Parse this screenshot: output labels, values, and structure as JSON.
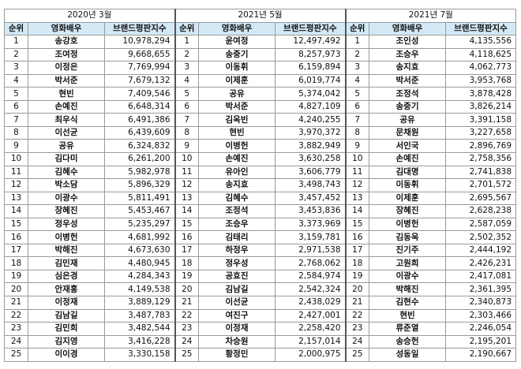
{
  "headers": {
    "rank": "순위",
    "actor": "영화배우",
    "index": "브랜드평판지수"
  },
  "periods": [
    {
      "title": "2020년 3월",
      "rows": [
        [
          "1",
          "송강호",
          "10,978,294"
        ],
        [
          "2",
          "조여정",
          "9,668,655"
        ],
        [
          "3",
          "이정은",
          "7,769,994"
        ],
        [
          "4",
          "박서준",
          "7,679,132"
        ],
        [
          "5",
          "현빈",
          "7,409,546"
        ],
        [
          "6",
          "손예진",
          "6,648,314"
        ],
        [
          "7",
          "최우식",
          "6,491,386"
        ],
        [
          "8",
          "이선균",
          "6,439,609"
        ],
        [
          "9",
          "공유",
          "6,324,832"
        ],
        [
          "10",
          "김다미",
          "6,261,200"
        ],
        [
          "11",
          "김혜수",
          "5,982,978"
        ],
        [
          "12",
          "박소담",
          "5,896,329"
        ],
        [
          "13",
          "이광수",
          "5,811,491"
        ],
        [
          "14",
          "장혜진",
          "5,453,467"
        ],
        [
          "15",
          "정우성",
          "5,235,297"
        ],
        [
          "16",
          "이병헌",
          "4,681,992"
        ],
        [
          "17",
          "박해진",
          "4,673,630"
        ],
        [
          "18",
          "김민재",
          "4,480,945"
        ],
        [
          "19",
          "심은경",
          "4,284,343"
        ],
        [
          "20",
          "안재홍",
          "4,149,538"
        ],
        [
          "21",
          "이정재",
          "3,889,129"
        ],
        [
          "22",
          "김남길",
          "3,487,783"
        ],
        [
          "23",
          "김민희",
          "3,482,544"
        ],
        [
          "24",
          "김지영",
          "3,416,228"
        ],
        [
          "25",
          "이이경",
          "3,330,158"
        ]
      ]
    },
    {
      "title": "2021년 5월",
      "rows": [
        [
          "1",
          "윤여정",
          "12,497,492"
        ],
        [
          "2",
          "송중기",
          "8,257,973"
        ],
        [
          "3",
          "이동휘",
          "6,159,894"
        ],
        [
          "4",
          "이제훈",
          "6,019,774"
        ],
        [
          "5",
          "공유",
          "5,374,042"
        ],
        [
          "6",
          "박서준",
          "4,827,109"
        ],
        [
          "7",
          "김옥빈",
          "4,240,255"
        ],
        [
          "8",
          "현빈",
          "3,970,372"
        ],
        [
          "9",
          "이병헌",
          "3,882,949"
        ],
        [
          "10",
          "손예진",
          "3,630,258"
        ],
        [
          "11",
          "유아인",
          "3,606,779"
        ],
        [
          "12",
          "송지효",
          "3,498,743"
        ],
        [
          "13",
          "김혜수",
          "3,457,452"
        ],
        [
          "14",
          "조정석",
          "3,453,836"
        ],
        [
          "15",
          "조승우",
          "3,373,969"
        ],
        [
          "16",
          "김태리",
          "3,159,781"
        ],
        [
          "17",
          "하정우",
          "2,971,538"
        ],
        [
          "18",
          "정우성",
          "2,768,062"
        ],
        [
          "19",
          "공효진",
          "2,584,974"
        ],
        [
          "20",
          "김남길",
          "2,542,324"
        ],
        [
          "21",
          "이선균",
          "2,438,029"
        ],
        [
          "22",
          "여진구",
          "2,427,001"
        ],
        [
          "23",
          "이정재",
          "2,258,420"
        ],
        [
          "24",
          "차승원",
          "2,157,014"
        ],
        [
          "25",
          "황정민",
          "2,000,975"
        ]
      ]
    },
    {
      "title": "2021년 7월",
      "rows": [
        [
          "1",
          "조인성",
          "4,135,556"
        ],
        [
          "2",
          "조승우",
          "4,118,625"
        ],
        [
          "3",
          "송지효",
          "4,062,773"
        ],
        [
          "4",
          "박서준",
          "3,953,768"
        ],
        [
          "5",
          "조정석",
          "3,878,428"
        ],
        [
          "6",
          "송중기",
          "3,826,214"
        ],
        [
          "7",
          "공유",
          "3,391,158"
        ],
        [
          "8",
          "문채원",
          "3,227,658"
        ],
        [
          "9",
          "서인국",
          "2,896,769"
        ],
        [
          "10",
          "손예진",
          "2,758,356"
        ],
        [
          "11",
          "김대명",
          "2,741,838"
        ],
        [
          "12",
          "이동휘",
          "2,701,572"
        ],
        [
          "13",
          "이제훈",
          "2,695,567"
        ],
        [
          "14",
          "장혜진",
          "2,628,238"
        ],
        [
          "15",
          "이병헌",
          "2,587,059"
        ],
        [
          "16",
          "김동욱",
          "2,502,352"
        ],
        [
          "17",
          "진기주",
          "2,444,192"
        ],
        [
          "18",
          "고원희",
          "2,426,231"
        ],
        [
          "19",
          "이광수",
          "2,417,081"
        ],
        [
          "20",
          "박해진",
          "2,361,395"
        ],
        [
          "21",
          "김현수",
          "2,340,873"
        ],
        [
          "22",
          "현빈",
          "2,303,466"
        ],
        [
          "23",
          "류준열",
          "2,246,054"
        ],
        [
          "24",
          "송승헌",
          "2,195,201"
        ],
        [
          "25",
          "성동일",
          "2,190,667"
        ]
      ]
    }
  ]
}
